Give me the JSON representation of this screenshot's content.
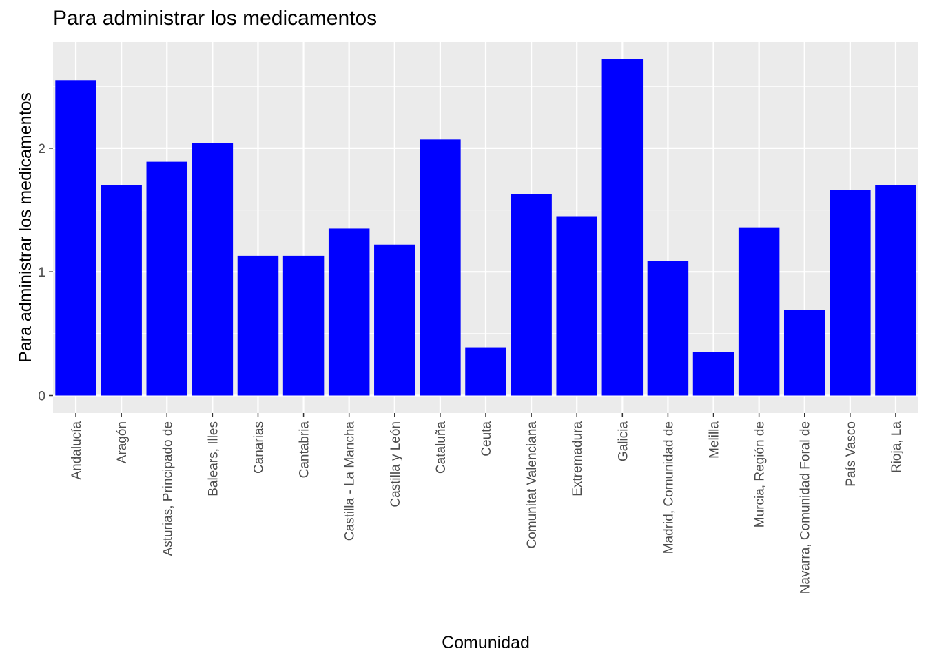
{
  "chart_data": {
    "type": "bar",
    "title": "Para administrar los medicamentos",
    "xlabel": "Comunidad",
    "ylabel": "Para administrar los medicamentos",
    "categories": [
      "Andalucía",
      "Aragón",
      "Asturias, Principado de",
      "Balears, Illes",
      "Canarias",
      "Cantabria",
      "Castilla - La Mancha",
      "Castilla y León",
      "Cataluña",
      "Ceuta",
      "Comunitat Valenciana",
      "Extremadura",
      "Galicia",
      "Madrid, Comunidad de",
      "Melilla",
      "Murcia, Región de",
      "Navarra, Comunidad Foral de",
      "País Vasco",
      "Rioja, La"
    ],
    "values": [
      2.55,
      1.7,
      1.89,
      2.04,
      1.13,
      1.13,
      1.35,
      1.22,
      2.07,
      0.39,
      1.63,
      1.45,
      2.72,
      1.09,
      0.35,
      1.36,
      0.69,
      1.66,
      1.7
    ],
    "ylim": [
      -0.14,
      2.86
    ],
    "yticks": [
      0,
      1,
      2
    ],
    "grid": true,
    "bar_color": "#0000ff",
    "panel_color": "#ebebeb",
    "grid_color": "#ffffff"
  }
}
